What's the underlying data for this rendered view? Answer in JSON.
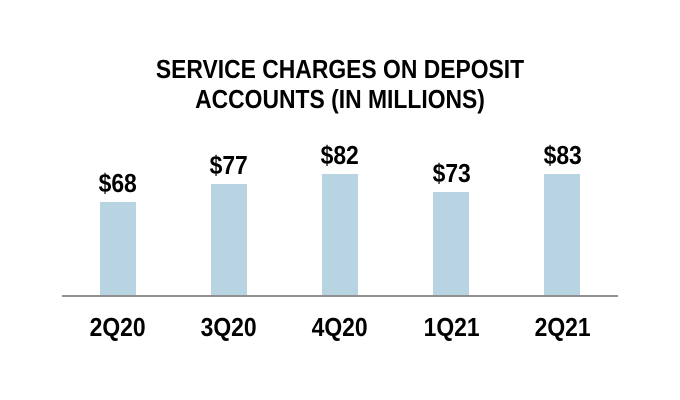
{
  "page": {
    "background_color": "#ffffff"
  },
  "chart_data": {
    "type": "bar",
    "title": "SERVICE CHARGES ON DEPOSIT ACCOUNTS (IN MILLIONS)",
    "categories": [
      "2Q20",
      "3Q20",
      "4Q20",
      "1Q21",
      "2Q21"
    ],
    "values": [
      68,
      77,
      82,
      73,
      83
    ],
    "data_labels": [
      "$68",
      "$77",
      "$82",
      "$73",
      "$83"
    ],
    "xlabel": "",
    "ylabel": "",
    "ylim": [
      21.5,
      90
    ],
    "grid": false,
    "legend": "none",
    "bar_color": "#b8d3e2",
    "axis_line_color": "#919191",
    "text_color": "#000000"
  }
}
